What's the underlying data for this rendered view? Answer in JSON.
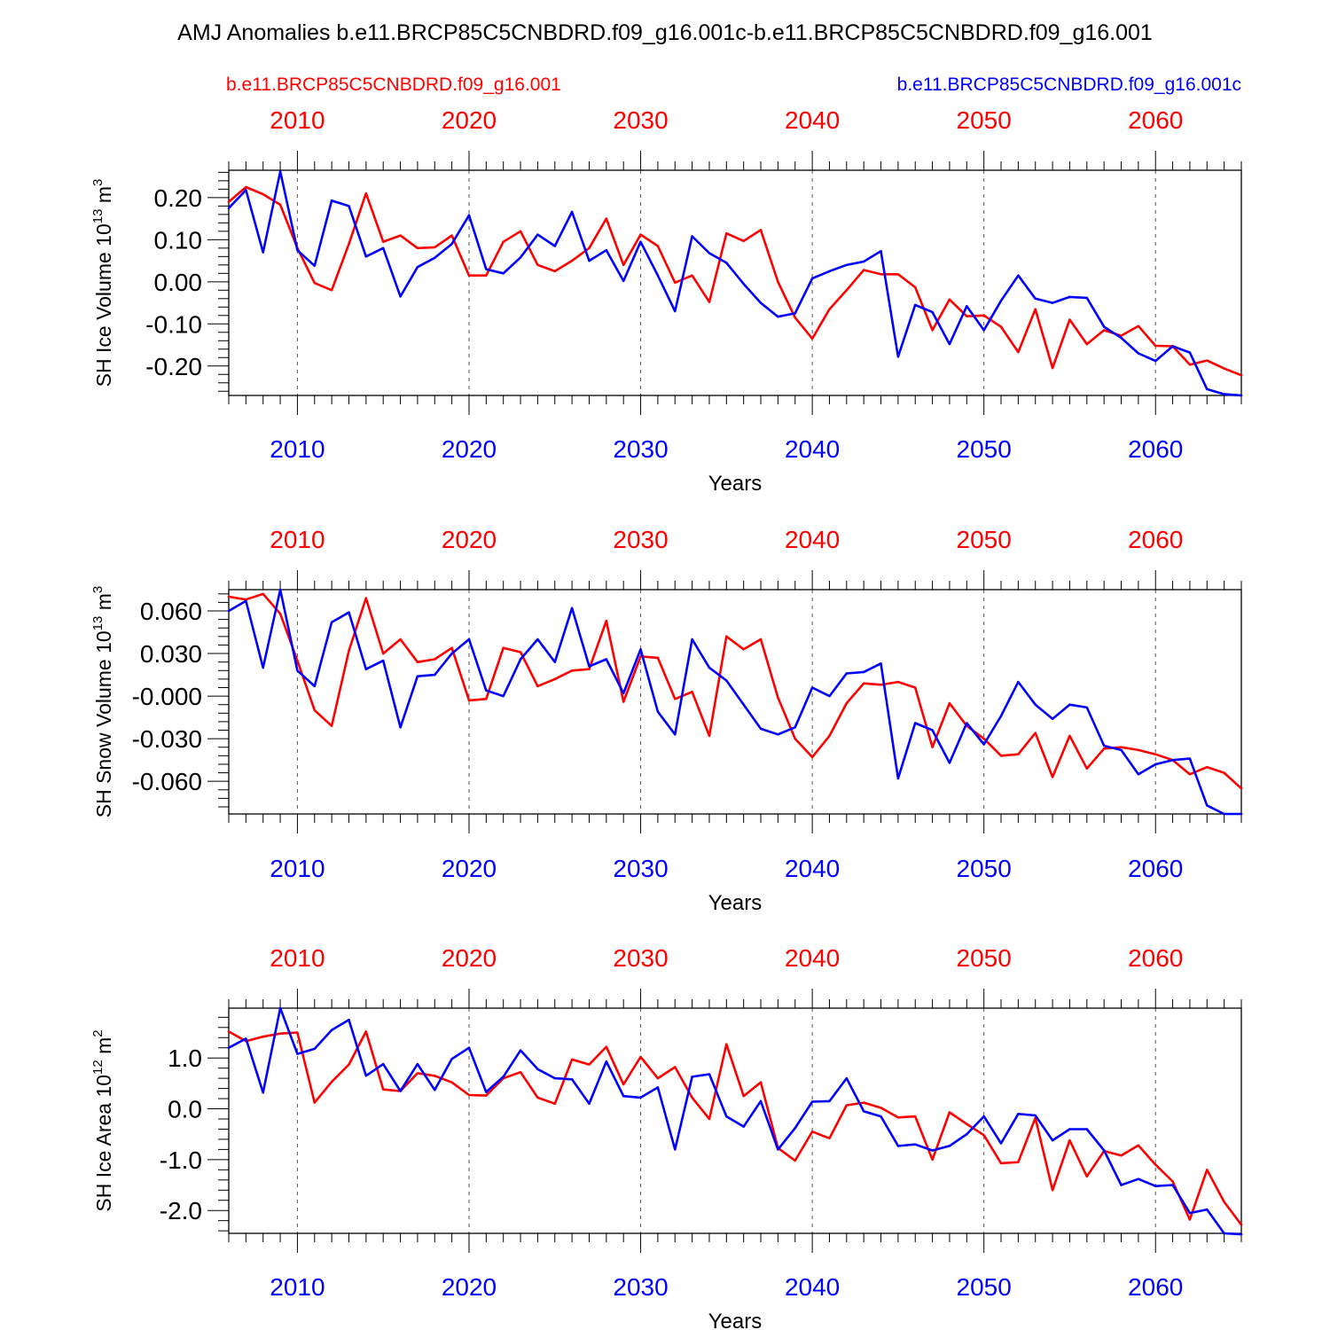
{
  "title": "AMJ Anomalies b.e11.BRCP85C5CNBDRD.f09_g16.001c-b.e11.BRCP85C5CNBDRD.f09_g16.001",
  "legend": {
    "red_label": "b.e11.BRCP85C5CNBDRD.f09_g16.001",
    "blue_label": "b.e11.BRCP85C5CNBDRD.f09_g16.001c"
  },
  "colors": {
    "red": "#ff0000",
    "blue": "#0000ff",
    "axis": "#000000",
    "grid": "#555555"
  },
  "chart_data": [
    {
      "type": "line",
      "ylabel_main": "SH Ice Volume 10",
      "ylabel_exp": "13",
      "ylabel_unit": "m",
      "ylabel_unit_exp": "3",
      "xlabel": "Years",
      "xlim": [
        2006,
        2065
      ],
      "ylim": [
        -0.27,
        0.265
      ],
      "yticks": [
        0.2,
        0.1,
        0.0,
        -0.1,
        -0.2
      ],
      "yticklabels": [
        "0.20",
        "0.10",
        "0.00",
        "-0.10",
        "-0.20"
      ],
      "yminor": 0.02,
      "xticks": [
        2010,
        2020,
        2030,
        2040,
        2050,
        2060
      ],
      "xticklabels": [
        "2010",
        "2020",
        "2030",
        "2040",
        "2050",
        "2060"
      ],
      "x_start": 2006,
      "series": [
        {
          "name": "b.e11.BRCP85C5CNBDRD.f09_g16.001",
          "color": "red",
          "values": [
            0.19,
            0.225,
            0.208,
            0.183,
            0.08,
            -0.003,
            -0.02,
            0.09,
            0.21,
            0.095,
            0.11,
            0.08,
            0.082,
            0.11,
            0.015,
            0.015,
            0.095,
            0.12,
            0.04,
            0.025,
            0.05,
            0.08,
            0.15,
            0.04,
            0.112,
            0.085,
            -0.002,
            0.015,
            -0.048,
            0.115,
            0.097,
            0.123,
            0.0,
            -0.085,
            -0.135,
            -0.065,
            -0.02,
            0.028,
            0.018,
            0.018,
            -0.013,
            -0.115,
            -0.042,
            -0.082,
            -0.08,
            -0.107,
            -0.167,
            -0.065,
            -0.205,
            -0.09,
            -0.148,
            -0.115,
            -0.128,
            -0.105,
            -0.152,
            -0.153,
            -0.197,
            -0.187,
            -0.206,
            -0.222
          ]
        },
        {
          "name": "b.e11.BRCP85C5CNBDRD.f09_g16.001c",
          "color": "blue",
          "values": [
            0.175,
            0.218,
            0.07,
            0.262,
            0.075,
            0.038,
            0.193,
            0.18,
            0.06,
            0.08,
            -0.035,
            0.035,
            0.057,
            0.09,
            0.158,
            0.03,
            0.02,
            0.058,
            0.112,
            0.085,
            0.166,
            0.05,
            0.075,
            0.002,
            0.095,
            0.015,
            -0.07,
            0.108,
            0.068,
            0.045,
            -0.005,
            -0.05,
            -0.083,
            -0.075,
            0.008,
            0.025,
            0.04,
            0.048,
            0.073,
            -0.178,
            -0.055,
            -0.072,
            -0.148,
            -0.058,
            -0.115,
            -0.045,
            0.015,
            -0.04,
            -0.05,
            -0.036,
            -0.038,
            -0.107,
            -0.133,
            -0.17,
            -0.188,
            -0.153,
            -0.168,
            -0.255,
            -0.267,
            -0.27
          ]
        }
      ]
    },
    {
      "type": "line",
      "ylabel_main": "SH Snow Volume 10",
      "ylabel_exp": "13",
      "ylabel_unit": "m",
      "ylabel_unit_exp": "3",
      "xlabel": "Years",
      "xlim": [
        2006,
        2065
      ],
      "ylim": [
        -0.083,
        0.075
      ],
      "yticks": [
        0.06,
        0.03,
        0.0,
        -0.03,
        -0.06
      ],
      "yticklabels": [
        "0.060",
        "0.030",
        "-0.000",
        "-0.030",
        "-0.060"
      ],
      "yminor": 0.006,
      "xticks": [
        2010,
        2020,
        2030,
        2040,
        2050,
        2060
      ],
      "xticklabels": [
        "2010",
        "2020",
        "2030",
        "2040",
        "2050",
        "2060"
      ],
      "x_start": 2006,
      "series": [
        {
          "name": "b.e11.BRCP85C5CNBDRD.f09_g16.001",
          "color": "red",
          "values": [
            0.07,
            0.068,
            0.072,
            0.058,
            0.025,
            -0.01,
            -0.021,
            0.032,
            0.069,
            0.03,
            0.04,
            0.024,
            0.026,
            0.034,
            -0.003,
            -0.002,
            0.034,
            0.031,
            0.007,
            0.012,
            0.018,
            0.019,
            0.053,
            -0.004,
            0.028,
            0.027,
            -0.002,
            0.003,
            -0.028,
            0.042,
            0.033,
            0.04,
            -0.001,
            -0.03,
            -0.043,
            -0.028,
            -0.005,
            0.009,
            0.008,
            0.01,
            0.006,
            -0.036,
            -0.005,
            -0.021,
            -0.03,
            -0.042,
            -0.041,
            -0.026,
            -0.057,
            -0.028,
            -0.051,
            -0.037,
            -0.036,
            -0.038,
            -0.041,
            -0.045,
            -0.055,
            -0.05,
            -0.054,
            -0.065
          ]
        },
        {
          "name": "b.e11.BRCP85C5CNBDRD.f09_g16.001c",
          "color": "blue",
          "values": [
            0.06,
            0.067,
            0.02,
            0.075,
            0.018,
            0.007,
            0.052,
            0.059,
            0.019,
            0.025,
            -0.022,
            0.014,
            0.015,
            0.03,
            0.04,
            0.004,
            0.0,
            0.026,
            0.04,
            0.024,
            0.062,
            0.021,
            0.026,
            0.002,
            0.033,
            -0.011,
            -0.027,
            0.04,
            0.02,
            0.011,
            -0.006,
            -0.023,
            -0.027,
            -0.022,
            0.006,
            0.0,
            0.016,
            0.017,
            0.023,
            -0.058,
            -0.019,
            -0.024,
            -0.047,
            -0.019,
            -0.034,
            -0.014,
            0.01,
            -0.006,
            -0.016,
            -0.006,
            -0.008,
            -0.035,
            -0.038,
            -0.055,
            -0.048,
            -0.045,
            -0.044,
            -0.077,
            -0.083,
            -0.083
          ]
        }
      ]
    },
    {
      "type": "line",
      "ylabel_main": "SH Ice Area 10",
      "ylabel_exp": "12",
      "ylabel_unit": "m",
      "ylabel_unit_exp": "2",
      "xlabel": "Years",
      "xlim": [
        2006,
        2065
      ],
      "ylim": [
        -2.45,
        1.98
      ],
      "yticks": [
        1.0,
        0.0,
        -1.0,
        -2.0
      ],
      "yticklabels": [
        "1.0",
        "0.0",
        "-1.0",
        "-2.0"
      ],
      "yminor": 0.2,
      "xticks": [
        2010,
        2020,
        2030,
        2040,
        2050,
        2060
      ],
      "xticklabels": [
        "2010",
        "2020",
        "2030",
        "2040",
        "2050",
        "2060"
      ],
      "x_start": 2006,
      "series": [
        {
          "name": "b.e11.BRCP85C5CNBDRD.f09_g16.001",
          "color": "red",
          "values": [
            1.52,
            1.33,
            1.42,
            1.48,
            1.5,
            0.12,
            0.53,
            0.87,
            1.52,
            0.38,
            0.35,
            0.7,
            0.65,
            0.52,
            0.27,
            0.26,
            0.6,
            0.72,
            0.22,
            0.1,
            0.97,
            0.87,
            1.22,
            0.48,
            1.02,
            0.6,
            0.82,
            0.22,
            -0.2,
            1.27,
            0.25,
            0.52,
            -0.77,
            -1.02,
            -0.45,
            -0.58,
            0.07,
            0.12,
            0.02,
            -0.17,
            -0.15,
            -1.0,
            -0.07,
            -0.3,
            -0.52,
            -1.07,
            -1.05,
            -0.18,
            -1.6,
            -0.62,
            -1.33,
            -0.83,
            -0.92,
            -0.72,
            -1.1,
            -1.43,
            -2.18,
            -1.2,
            -1.83,
            -2.28
          ]
        },
        {
          "name": "b.e11.BRCP85C5CNBDRD.f09_g16.001c",
          "color": "blue",
          "values": [
            1.2,
            1.38,
            0.32,
            1.98,
            1.08,
            1.18,
            1.55,
            1.75,
            0.65,
            0.88,
            0.35,
            0.88,
            0.37,
            0.98,
            1.2,
            0.33,
            0.63,
            1.15,
            0.78,
            0.6,
            0.58,
            0.1,
            0.93,
            0.25,
            0.22,
            0.42,
            -0.8,
            0.63,
            0.68,
            -0.15,
            -0.35,
            0.15,
            -0.8,
            -0.38,
            0.14,
            0.15,
            0.6,
            -0.05,
            -0.15,
            -0.73,
            -0.7,
            -0.82,
            -0.73,
            -0.5,
            -0.15,
            -0.68,
            -0.1,
            -0.13,
            -0.62,
            -0.4,
            -0.4,
            -0.82,
            -1.5,
            -1.38,
            -1.52,
            -1.5,
            -2.05,
            -1.98,
            -2.45,
            -2.47
          ]
        }
      ]
    }
  ]
}
